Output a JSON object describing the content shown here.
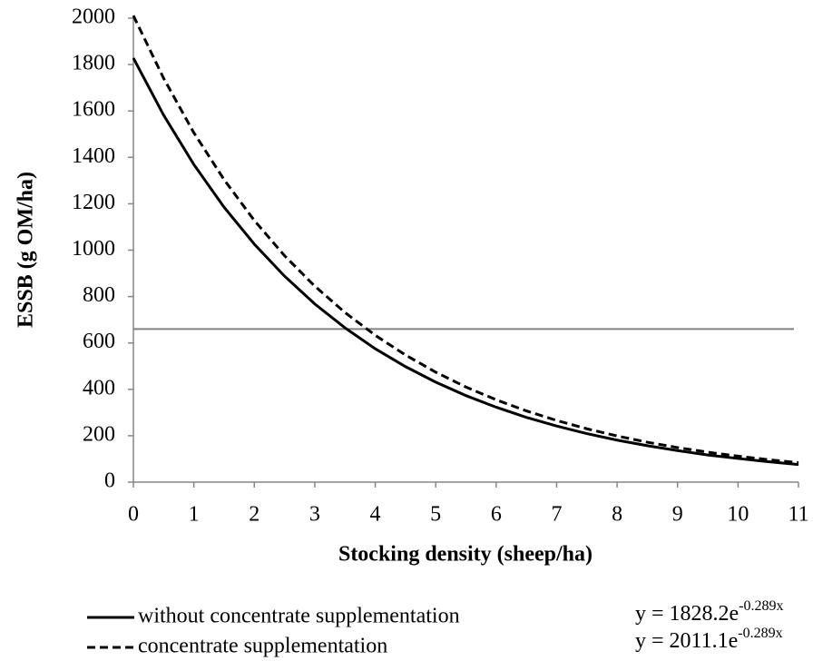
{
  "chart_data": {
    "type": "line",
    "x_label": "Stocking density (sheep/ha)",
    "y_label": "ESSB (g OM/ha)",
    "x": [
      0,
      0.5,
      1,
      1.5,
      2,
      2.5,
      3,
      3.5,
      4,
      4.5,
      5,
      5.5,
      6,
      6.5,
      7,
      7.5,
      8,
      8.5,
      9,
      9.5,
      10,
      10.5,
      11
    ],
    "series": [
      {
        "name": "without concentrate supplementation",
        "color": "#000000",
        "dash": false,
        "equation": {
          "base": "y = 1828.2e",
          "exponent": "-0.289x"
        },
        "values": [
          1828,
          1582,
          1369,
          1185,
          1026,
          888,
          768,
          665,
          575,
          498,
          431,
          373,
          323,
          279,
          242,
          209,
          181,
          157,
          136,
          117,
          102,
          88,
          76
        ]
      },
      {
        "name": "concentrate supplementation",
        "color": "#000000",
        "dash": true,
        "equation": {
          "base": "y = 2011.1e",
          "exponent": "-0.289x"
        },
        "values": [
          2011,
          1741,
          1506,
          1304,
          1128,
          976,
          845,
          731,
          633,
          548,
          474,
          410,
          355,
          307,
          266,
          230,
          199,
          172,
          149,
          129,
          112,
          97,
          84
        ]
      }
    ],
    "hline": 660,
    "hline_color": "#808080",
    "xlim": [
      0,
      11
    ],
    "xticks": [
      0,
      1,
      2,
      3,
      4,
      5,
      6,
      7,
      8,
      9,
      10,
      11
    ],
    "ylim": [
      0,
      2000
    ],
    "yticks": [
      0,
      200,
      400,
      600,
      800,
      1000,
      1200,
      1400,
      1600,
      1800,
      2000
    ],
    "grid": false
  }
}
